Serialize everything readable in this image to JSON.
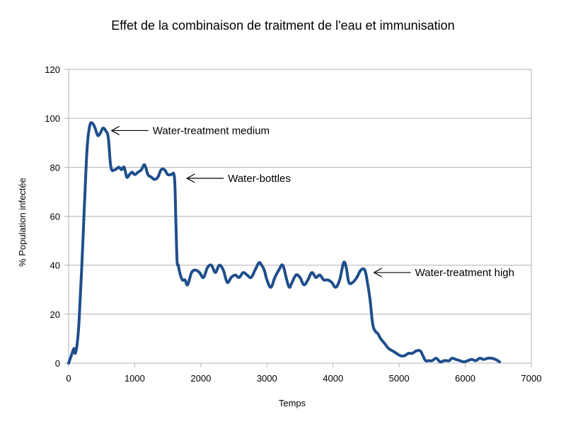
{
  "chart_data": {
    "type": "line",
    "title": "Effet de la combinaison de traitment de l'eau et immunisation",
    "xlabel": "Temps",
    "ylabel": "% Population infectée",
    "xlim": [
      0,
      7000
    ],
    "ylim": [
      0,
      120
    ],
    "xticks": [
      0,
      1000,
      2000,
      3000,
      4000,
      5000,
      6000,
      7000
    ],
    "yticks": [
      0,
      20,
      40,
      60,
      80,
      100,
      120
    ],
    "grid": "horizontal",
    "colors": {
      "series": "#1f4e8c",
      "grid": "#b3b3b3",
      "axis": "#b3b3b3",
      "text": "#000000"
    },
    "series": [
      {
        "name": "% Population infectée",
        "x": [
          0,
          40,
          80,
          100,
          130,
          160,
          200,
          240,
          280,
          320,
          360,
          400,
          440,
          480,
          520,
          560,
          600,
          640,
          700,
          760,
          800,
          840,
          880,
          920,
          960,
          1000,
          1050,
          1100,
          1150,
          1200,
          1250,
          1300,
          1350,
          1400,
          1450,
          1500,
          1550,
          1600,
          1620,
          1640,
          1660,
          1680,
          1720,
          1760,
          1800,
          1860,
          1920,
          1980,
          2040,
          2100,
          2160,
          2220,
          2280,
          2340,
          2400,
          2460,
          2520,
          2580,
          2640,
          2700,
          2760,
          2820,
          2880,
          2920,
          2960,
          3000,
          3060,
          3120,
          3180,
          3240,
          3300,
          3340,
          3380,
          3440,
          3500,
          3560,
          3620,
          3680,
          3740,
          3800,
          3860,
          3920,
          3980,
          4040,
          4100,
          4160,
          4200,
          4240,
          4300,
          4360,
          4420,
          4480,
          4520,
          4560,
          4600,
          4640,
          4680,
          4720,
          4780,
          4840,
          4900,
          4960,
          5020,
          5080,
          5140,
          5200,
          5260,
          5320,
          5360,
          5400,
          5440,
          5500,
          5560,
          5620,
          5680,
          5720,
          5760,
          5800,
          5860,
          5920,
          5980,
          6040,
          6100,
          6160,
          6220,
          6280,
          6340,
          6400,
          6460,
          6520
        ],
        "values": [
          0,
          3,
          6,
          4,
          8,
          18,
          40,
          65,
          88,
          97,
          98,
          96,
          93,
          94,
          96,
          95,
          92,
          80,
          79,
          80,
          79,
          80,
          76,
          77,
          78,
          77,
          78,
          79,
          81,
          77,
          76,
          75,
          76,
          79,
          79,
          77,
          77,
          76,
          60,
          42,
          40,
          37,
          34,
          34,
          32,
          37,
          38,
          37,
          35,
          39,
          40,
          37,
          40,
          38,
          33,
          35,
          36,
          35,
          37,
          36,
          35,
          38,
          41,
          40,
          38,
          34,
          31,
          35,
          38,
          40,
          34,
          31,
          33,
          36,
          35,
          32,
          34,
          37,
          35,
          36,
          34,
          34,
          33,
          31,
          34,
          41,
          39,
          33,
          33,
          35,
          38,
          38,
          33,
          26,
          16,
          13,
          12,
          10,
          8,
          6,
          5,
          4,
          3,
          3,
          4,
          4,
          5,
          5,
          3,
          1,
          1,
          1,
          2,
          0.5,
          1,
          1,
          1,
          2,
          1.5,
          1,
          0.5,
          1,
          1.5,
          1,
          2,
          1.5,
          2,
          2,
          1.5,
          0.5
        ]
      }
    ],
    "annotations": [
      {
        "text": "Water-treatment medium",
        "x": 650,
        "y": 95
      },
      {
        "text": "Water-bottles",
        "x": 1790,
        "y": 75.5
      },
      {
        "text": "Water-treatment high",
        "x": 4620,
        "y": 37
      }
    ]
  }
}
